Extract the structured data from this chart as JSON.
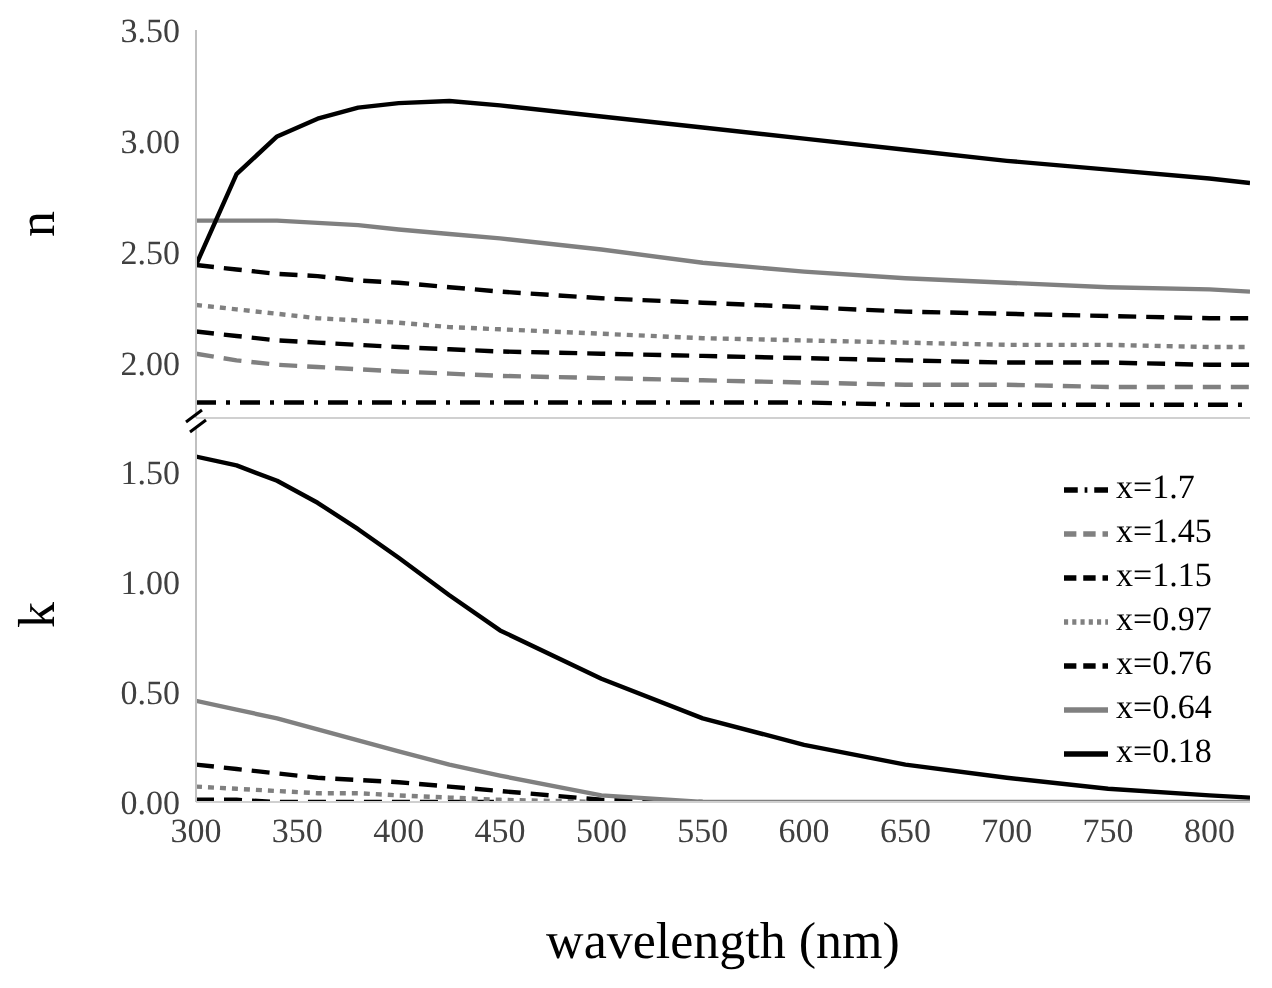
{
  "chart_data": [
    {
      "type": "line",
      "ylabel": "n",
      "x": [
        300,
        320,
        340,
        360,
        380,
        400,
        425,
        450,
        500,
        550,
        600,
        650,
        700,
        750,
        800,
        820
      ],
      "xlim": [
        300,
        820
      ],
      "xticks": [
        300,
        350,
        400,
        450,
        500,
        550,
        600,
        650,
        700,
        750,
        800
      ],
      "ylim": [
        1.75,
        3.5
      ],
      "yticks": [
        {
          "value": 2,
          "label": "2.00"
        },
        {
          "value": 2.5,
          "label": "2.50"
        },
        {
          "value": 3,
          "label": "3.00"
        },
        {
          "value": 3.5,
          "label": "3.50"
        }
      ],
      "tick_labels": "y",
      "grid": false,
      "legend": false,
      "marker": "none",
      "series": [
        {
          "color": "#000000",
          "line_style": "dashdot",
          "values": [
            1.82,
            1.82,
            1.82,
            1.82,
            1.82,
            1.82,
            1.82,
            1.82,
            1.82,
            1.82,
            1.82,
            1.81,
            1.81,
            1.81,
            1.81,
            1.81
          ]
        },
        {
          "color": "#808080",
          "line_style": "dashed",
          "values": [
            2.04,
            2.01,
            1.99,
            1.98,
            1.97,
            1.96,
            1.95,
            1.94,
            1.93,
            1.92,
            1.91,
            1.9,
            1.9,
            1.89,
            1.89,
            1.89
          ]
        },
        {
          "color": "#000000",
          "line_style": "dashed",
          "values": [
            2.14,
            2.12,
            2.1,
            2.09,
            2.08,
            2.07,
            2.06,
            2.05,
            2.04,
            2.03,
            2.02,
            2.01,
            2.0,
            2.0,
            1.99,
            1.99
          ]
        },
        {
          "color": "#808080",
          "line_style": "dotted",
          "values": [
            2.26,
            2.24,
            2.22,
            2.2,
            2.19,
            2.18,
            2.16,
            2.15,
            2.13,
            2.11,
            2.1,
            2.09,
            2.08,
            2.08,
            2.07,
            2.07
          ]
        },
        {
          "color": "#000000",
          "line_style": "dashed",
          "values": [
            2.44,
            2.42,
            2.4,
            2.39,
            2.37,
            2.36,
            2.34,
            2.32,
            2.29,
            2.27,
            2.25,
            2.23,
            2.22,
            2.21,
            2.2,
            2.2
          ]
        },
        {
          "color": "#808080",
          "line_style": "solid",
          "values": [
            2.64,
            2.64,
            2.64,
            2.63,
            2.62,
            2.6,
            2.58,
            2.56,
            2.51,
            2.45,
            2.41,
            2.38,
            2.36,
            2.34,
            2.33,
            2.32
          ]
        },
        {
          "color": "#000000",
          "line_style": "solid",
          "values": [
            2.44,
            2.85,
            3.02,
            3.1,
            3.15,
            3.17,
            3.18,
            3.16,
            3.11,
            3.06,
            3.01,
            2.96,
            2.91,
            2.87,
            2.83,
            2.81
          ]
        }
      ]
    },
    {
      "type": "line",
      "xlabel": "wavelength (nm)",
      "ylabel": "k",
      "x": [
        300,
        320,
        340,
        360,
        380,
        400,
        425,
        450,
        500,
        550,
        600,
        650,
        700,
        750,
        800,
        820
      ],
      "xlim": [
        300,
        820
      ],
      "xticks": [
        300,
        350,
        400,
        450,
        500,
        550,
        600,
        650,
        700,
        750,
        800
      ],
      "ylim": [
        0,
        1.7
      ],
      "yticks": [
        {
          "value": 0,
          "label": "0.00"
        },
        {
          "value": 0.5,
          "label": "0.50"
        },
        {
          "value": 1,
          "label": "1.00"
        },
        {
          "value": 1.5,
          "label": "1.50"
        }
      ],
      "grid": false,
      "legend": "right",
      "marker": "none",
      "series": [
        {
          "name": "x=1.7",
          "color": "#000000",
          "line_style": "dashdot",
          "values": [
            null,
            null,
            null,
            null,
            null,
            null,
            null,
            null,
            null,
            null,
            null,
            null,
            null,
            null,
            null,
            null
          ]
        },
        {
          "name": "x=1.45",
          "color": "#808080",
          "line_style": "dashed",
          "values": [
            null,
            null,
            null,
            null,
            null,
            null,
            null,
            null,
            null,
            null,
            null,
            null,
            null,
            null,
            null,
            null
          ]
        },
        {
          "name": "x=1.15",
          "color": "#000000",
          "line_style": "dashed",
          "values": [
            0.01,
            0.01,
            0,
            0,
            0,
            0,
            0,
            0,
            null,
            null,
            null,
            null,
            null,
            null,
            null,
            null
          ]
        },
        {
          "name": "x=0.97",
          "color": "#808080",
          "line_style": "dotted",
          "values": [
            0.07,
            0.06,
            0.05,
            0.04,
            0.04,
            0.03,
            0.02,
            0.01,
            0,
            null,
            null,
            null,
            null,
            null,
            null,
            null
          ]
        },
        {
          "name": "x=0.76",
          "color": "#000000",
          "line_style": "dashed",
          "values": [
            0.17,
            0.15,
            0.13,
            0.11,
            0.1,
            0.09,
            0.07,
            0.05,
            0.01,
            0,
            null,
            null,
            null,
            null,
            null,
            null
          ]
        },
        {
          "name": "x=0.64",
          "color": "#808080",
          "line_style": "solid",
          "values": [
            0.46,
            0.42,
            0.38,
            0.33,
            0.28,
            0.23,
            0.17,
            0.12,
            0.03,
            0,
            0,
            0,
            0,
            0,
            0,
            0
          ]
        },
        {
          "name": "x=0.18",
          "color": "#000000",
          "line_style": "solid",
          "values": [
            1.57,
            1.53,
            1.46,
            1.36,
            1.24,
            1.11,
            0.94,
            0.78,
            0.56,
            0.38,
            0.26,
            0.17,
            0.11,
            0.06,
            0.03,
            0.02
          ]
        }
      ]
    }
  ]
}
